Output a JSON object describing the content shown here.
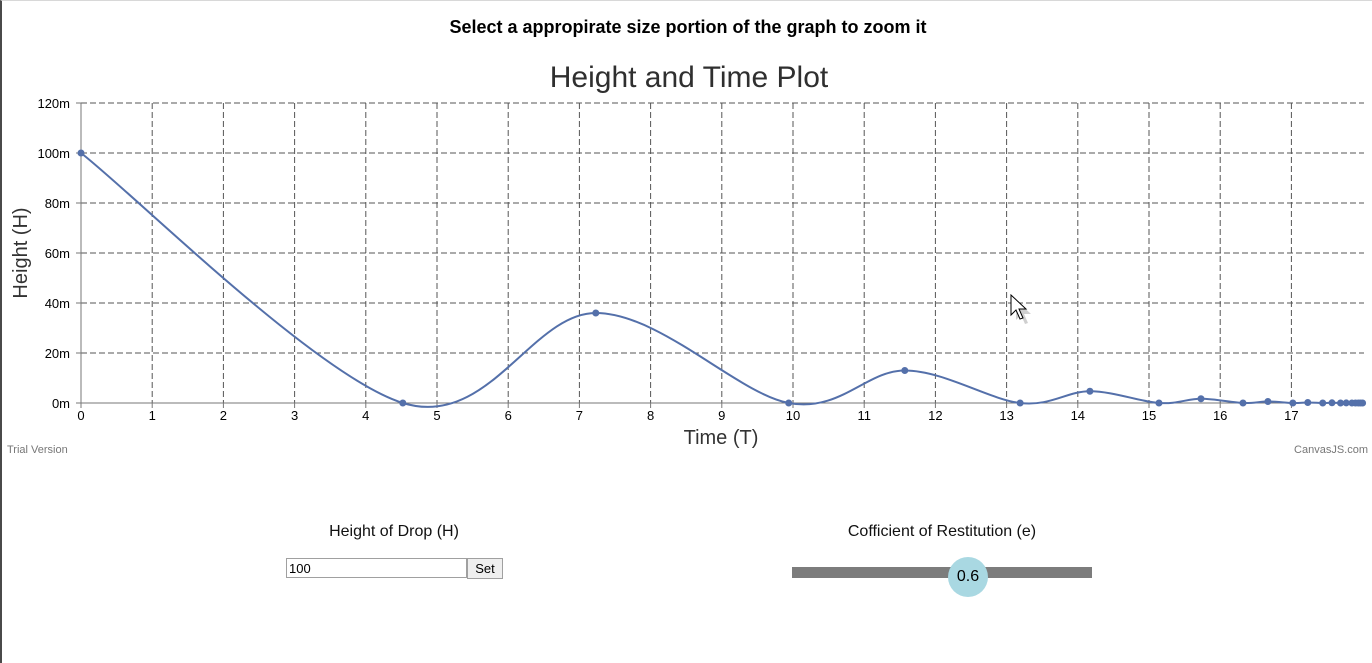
{
  "instruction": "Select a appropirate size portion of the graph to zoom it",
  "credits": {
    "left": "Trial Version",
    "right": "CanvasJS.com"
  },
  "controls": {
    "height_label": "Height of Drop (H)",
    "height_value": "100",
    "set_label": "Set",
    "restitution_label": "Cofficient of Restitution (e)",
    "restitution_value": "0.6"
  },
  "colors": {
    "series": "#5470aa",
    "grid": "#555555"
  },
  "cursor_icon": "mouse-pointer-icon",
  "chart_data": {
    "type": "line",
    "title": "Height and Time Plot",
    "xlabel": "Time (T)",
    "ylabel": "Height (H)",
    "xlim": [
      0,
      18
    ],
    "ylim": [
      0,
      120
    ],
    "x_ticks": [
      "0",
      "1",
      "2",
      "3",
      "4",
      "5",
      "6",
      "7",
      "8",
      "9",
      "10",
      "11",
      "12",
      "13",
      "14",
      "15",
      "16",
      "17"
    ],
    "y_ticks": [
      "0m",
      "20m",
      "40m",
      "60m",
      "80m",
      "100m",
      "120m"
    ],
    "grid": true,
    "grid_style": "dashed",
    "legend": "none",
    "series": [
      {
        "x": [
          0,
          4.52,
          7.23,
          9.94,
          11.57,
          13.19,
          14.17,
          15.14,
          15.73,
          16.32,
          16.67,
          17.02,
          17.23,
          17.44,
          17.57,
          17.69,
          17.77,
          17.85,
          17.9,
          17.94,
          17.97,
          18.0
        ],
        "y": [
          100,
          0,
          36,
          0,
          13,
          0,
          4.7,
          0,
          1.7,
          0,
          0.6,
          0,
          0.2,
          0,
          0.08,
          0,
          0.03,
          0,
          0.01,
          0,
          0,
          0
        ]
      }
    ]
  }
}
